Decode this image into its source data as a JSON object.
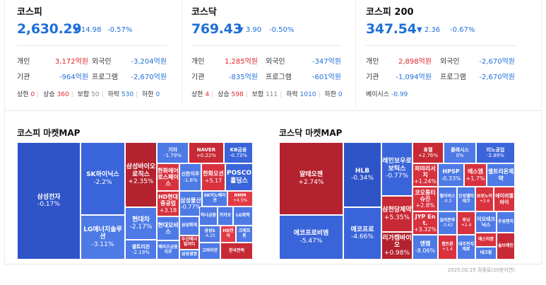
{
  "kospi": {
    "name": "코스피",
    "price": "2,630.29",
    "change": "▼ 14.98",
    "pct": "-0.57%",
    "indiv_label": "개인",
    "indiv_val": "3,172억원",
    "foreign_label": "외국인",
    "foreign_val": "-3,204억원",
    "inst_label": "기관",
    "inst_val": "-964억원",
    "prog_label": "프로그램",
    "prog_val": "-2,670억원",
    "upper_label": "상한",
    "upper_val": "0",
    "up_label": "상승",
    "up_val": "360",
    "flat_label": "보합",
    "flat_val": "50",
    "down_label": "하락",
    "down_val": "530",
    "lower_label": "하한",
    "lower_val": "0"
  },
  "kosdaq": {
    "name": "코스닥",
    "price": "769.43",
    "change": "▼ 3.90",
    "pct": "-0.50%",
    "indiv_label": "개인",
    "indiv_val": "1,285억원",
    "foreign_label": "외국인",
    "foreign_val": "-347억원",
    "inst_label": "기관",
    "inst_val": "-835억원",
    "prog_label": "프로그램",
    "prog_val": "-601억원",
    "upper_label": "상한",
    "upper_val": "4",
    "up_label": "상승",
    "up_val": "598",
    "flat_label": "보합",
    "flat_val": "111",
    "down_label": "하락",
    "down_val": "1010",
    "lower_label": "하한",
    "lower_val": "0"
  },
  "kospi200": {
    "name": "코스피 200",
    "price": "347.54",
    "change": "▼ 2.36",
    "pct": "-0.67%",
    "indiv_label": "개인",
    "indiv_val": "2,898억원",
    "foreign_label": "외국인",
    "foreign_val": "-2,670억원",
    "inst_label": "기관",
    "inst_val": "-1,094억원",
    "prog_label": "프로그램",
    "prog_val": "-2,670억원",
    "basis_label": "베이시스",
    "basis_val": "-0.99"
  },
  "kospi_map": {
    "title": "코스피 마켓MAP",
    "tiles": [
      {
        "name": "삼성전자",
        "val": "-0.17%"
      },
      {
        "name": "SK하이닉스",
        "val": "-2.2%"
      },
      {
        "name": "LG에너지솔루션",
        "val": "-3.11%"
      },
      {
        "name": "삼성바이오로직스",
        "val": "+2.35%"
      },
      {
        "name": "현대차",
        "val": "-2.17%"
      },
      {
        "name": "셀트리온",
        "val": "-2.19%"
      },
      {
        "name": "기아",
        "val": "-1.79%"
      },
      {
        "name": "NAVER",
        "val": "+0.22%"
      },
      {
        "name": "KB금융",
        "val": "-0.73%"
      },
      {
        "name": "한화에어로스페이스",
        "val": ""
      },
      {
        "name": "신한지주",
        "val": "-1.8%"
      },
      {
        "name": "한화오션",
        "val": "+5.17"
      },
      {
        "name": "POSCO홀딩스",
        "val": ""
      },
      {
        "name": "HD현대중공업",
        "val": "+3.18"
      },
      {
        "name": "삼성물산",
        "val": "-0.77%"
      },
      {
        "name": "SK이노베이션",
        "val": ""
      },
      {
        "name": "HMM",
        "val": "+4.5%"
      },
      {
        "name": "삼성화재",
        "val": ""
      },
      {
        "name": "하나금융",
        "val": ""
      },
      {
        "name": "카카오",
        "val": ""
      },
      {
        "name": "LG화학",
        "val": ""
      },
      {
        "name": "현대모비스",
        "val": ""
      },
      {
        "name": "두산에너빌리티",
        "val": ""
      },
      {
        "name": "삼성S",
        "val": "-4.25"
      },
      {
        "name": "HD한국",
        "val": ""
      },
      {
        "name": "크래프톤",
        "val": ""
      },
      {
        "name": "메리츠금융지주",
        "val": ""
      },
      {
        "name": "삼성생명",
        "val": ""
      },
      {
        "name": "고려아연",
        "val": ""
      },
      {
        "name": "한국전력",
        "val": ""
      }
    ]
  },
  "kosdaq_map": {
    "title": "코스닥 마켓MAP",
    "tiles": [
      {
        "name": "알테오젠",
        "val": "+2.74%"
      },
      {
        "name": "에코프로비엠",
        "val": "-5.47%"
      },
      {
        "name": "HLB",
        "val": "-0.34%"
      },
      {
        "name": "에코프로",
        "val": "-4.66%"
      },
      {
        "name": "레인보우로보틱스",
        "val": "-0.77%"
      },
      {
        "name": "삼천당제약",
        "val": "+5.35%"
      },
      {
        "name": "리가켐바이오",
        "val": "+0.98%"
      },
      {
        "name": "휴젤",
        "val": "+2.76%"
      },
      {
        "name": "클래시스",
        "val": "0%"
      },
      {
        "name": "리노공업",
        "val": "-2.89%"
      },
      {
        "name": "파마리서치",
        "val": "+1.24%"
      },
      {
        "name": "HPSP",
        "val": "-0.33%"
      },
      {
        "name": "에스엠",
        "val": "+1.7%"
      },
      {
        "name": "셀트리온제약",
        "val": ""
      },
      {
        "name": "코오롱티슈진",
        "val": "+2.8%"
      },
      {
        "name": "펄어비스",
        "val": "-0.3"
      },
      {
        "name": "신성델타테크",
        "val": ""
      },
      {
        "name": "보로노이",
        "val": "+3.6"
      },
      {
        "name": "에이비엘바이",
        "val": ""
      },
      {
        "name": "JYP Ent.",
        "val": "+3.32%"
      },
      {
        "name": "실리콘투",
        "val": "-3.62"
      },
      {
        "name": "루닛",
        "val": "+2.4"
      },
      {
        "name": "이오테크닉스",
        "val": ""
      },
      {
        "name": "주성엔지",
        "val": ""
      },
      {
        "name": "엔켐",
        "val": "-8.06%"
      },
      {
        "name": "펩트론",
        "val": "+1.4"
      },
      {
        "name": "대주전자재료",
        "val": ""
      },
      {
        "name": "에스티팜",
        "val": ""
      },
      {
        "name": "테크윙",
        "val": ""
      },
      {
        "name": "솔브레인",
        "val": ""
      }
    ]
  },
  "footnote": "2025.02.25 장종료(20분지연)"
}
